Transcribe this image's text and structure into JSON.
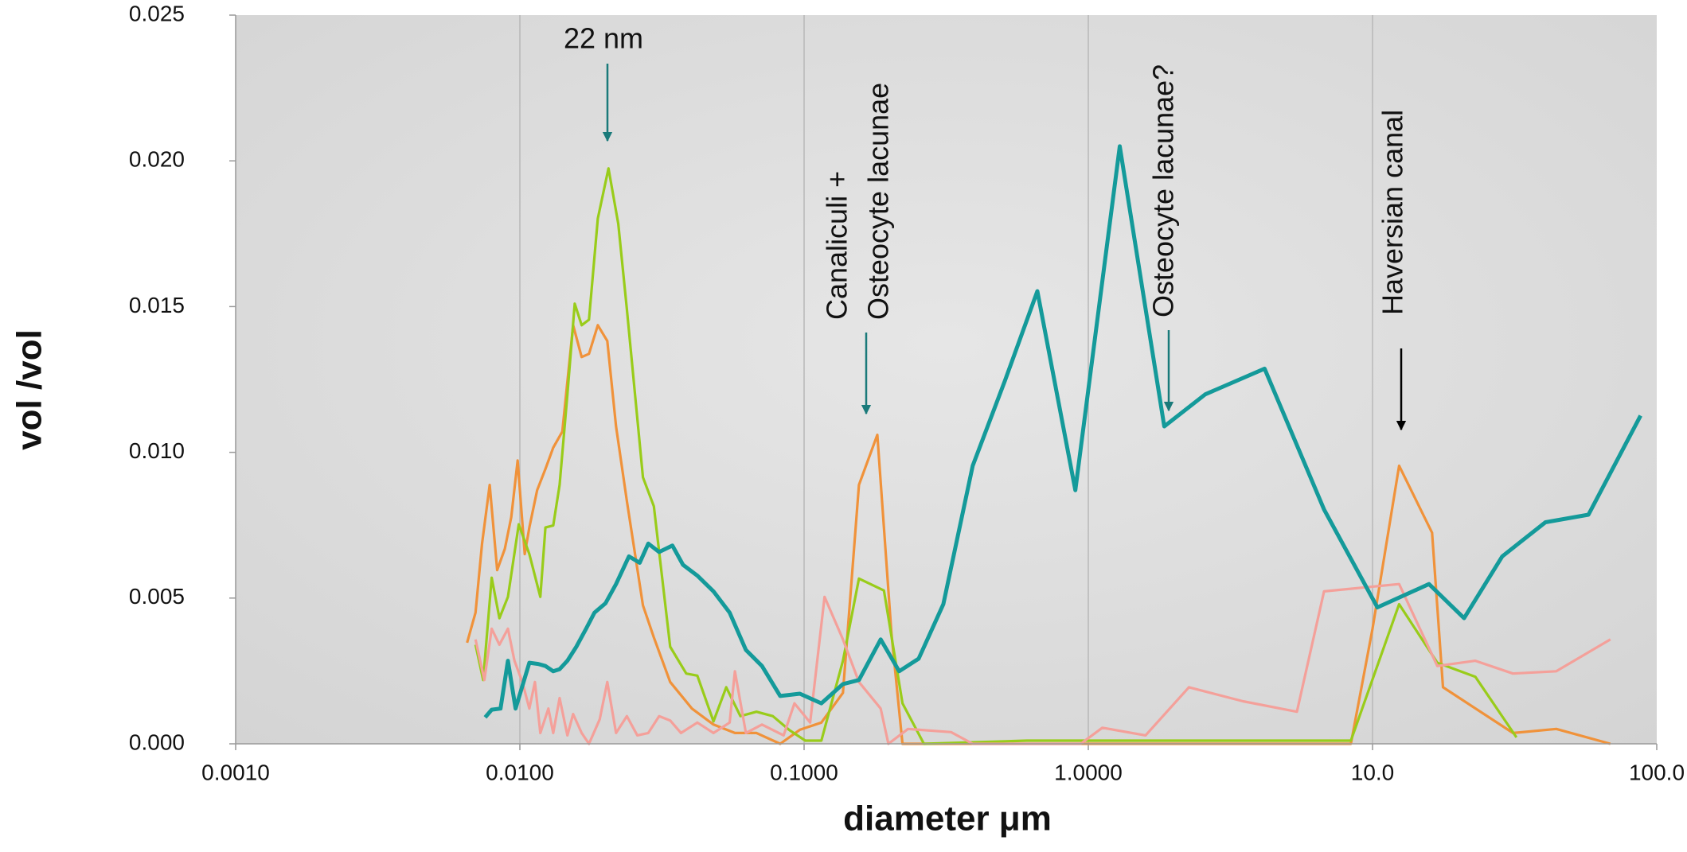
{
  "chart_data": {
    "type": "line",
    "xlabel": "diameter μm",
    "ylabel": "vol /vol",
    "xscale": "log",
    "xlim": [
      0.001,
      100
    ],
    "xticks": [
      {
        "value": 0.001,
        "label": "0.0010"
      },
      {
        "value": 0.01,
        "label": "0.0100"
      },
      {
        "value": 0.1,
        "label": "0.1000"
      },
      {
        "value": 1,
        "label": "1.0000"
      },
      {
        "value": 10,
        "label": "10.0"
      },
      {
        "value": 100,
        "label": "100.0"
      }
    ],
    "ylim": [
      0,
      0.025
    ],
    "yticks": [
      {
        "value": 0,
        "label": "0.000"
      },
      {
        "value": 0.005,
        "label": "0.005"
      },
      {
        "value": 0.01,
        "label": "0.010"
      },
      {
        "value": 0.015,
        "label": "0.015"
      },
      {
        "value": 0.02,
        "label": "0.020"
      },
      {
        "value": 0.025,
        "label": "0.025"
      }
    ],
    "grid": true,
    "annotations": [
      "22 nm",
      "Canaliculi +",
      "Osteocyte lacunae",
      "Osteocyte lacunae?",
      "Haversian canal"
    ],
    "series": [
      {
        "color": "#f0923a",
        "x": [
          0.00652,
          0.00698,
          0.00736,
          0.00783,
          0.00832,
          0.00885,
          0.00933,
          0.00982,
          0.0104,
          0.0108,
          0.0115,
          0.0123,
          0.0131,
          0.0141,
          0.0154,
          0.0165,
          0.0175,
          0.0188,
          0.0203,
          0.0218,
          0.0238,
          0.0271,
          0.0296,
          0.0338,
          0.0403,
          0.048,
          0.0571,
          0.068,
          0.0824,
          0.0966,
          0.115,
          0.137,
          0.156,
          0.181,
          0.203,
          0.222,
          0.392,
          0.94,
          2.26,
          5.42,
          8.39,
          10.0,
          12.4,
          16.2,
          17.7,
          31.2,
          44.3,
          68.7
        ],
        "values": [
          0.00347,
          0.0045,
          0.00687,
          0.00888,
          0.00596,
          0.00669,
          0.00778,
          0.00972,
          0.00651,
          0.00742,
          0.0087,
          0.00943,
          0.01016,
          0.01071,
          0.01436,
          0.01327,
          0.01338,
          0.01436,
          0.01382,
          0.01089,
          0.00833,
          0.00475,
          0.00365,
          0.00212,
          0.00121,
          0.00066,
          0.00037,
          0.00037,
          0,
          0.00048,
          0.00073,
          0.00175,
          0.00888,
          0.0106,
          0.00376,
          0,
          0,
          0,
          0,
          0,
          0,
          0.00395,
          0.00954,
          0.00724,
          0.00194,
          0.00037,
          0.00051,
          0
        ]
      },
      {
        "color": "#99cc1a",
        "x": [
          0.00698,
          0.00743,
          0.00796,
          0.00847,
          0.00908,
          0.00991,
          0.0108,
          0.0118,
          0.0123,
          0.0131,
          0.0138,
          0.0147,
          0.0156,
          0.0165,
          0.0175,
          0.0188,
          0.0205,
          0.0222,
          0.0238,
          0.0271,
          0.0296,
          0.0338,
          0.0385,
          0.0421,
          0.048,
          0.0532,
          0.0597,
          0.068,
          0.0776,
          0.0885,
          0.101,
          0.115,
          0.137,
          0.156,
          0.191,
          0.222,
          0.264,
          0.607,
          2.26,
          8.39,
          12.4,
          16.9,
          23.0,
          32.1
        ],
        "values": [
          0.0034,
          0.00219,
          0.0057,
          0.00431,
          0.00504,
          0.00753,
          0.00651,
          0.00504,
          0.00742,
          0.00749,
          0.00888,
          0.01199,
          0.0151,
          0.01436,
          0.01455,
          0.01802,
          0.01974,
          0.01784,
          0.01491,
          0.00914,
          0.00815,
          0.00333,
          0.00241,
          0.00234,
          0.00077,
          0.00194,
          0.00095,
          0.0011,
          0.00095,
          0.00048,
          0.00011,
          0.00011,
          0.00285,
          0.00567,
          0.00526,
          0.00139,
          0,
          0.00011,
          0.00011,
          0.00011,
          0.00479,
          0.00278,
          0.0023,
          0.00022
        ]
      },
      {
        "color": "#f4a09a",
        "x": [
          0.00698,
          0.0075,
          0.00796,
          0.00847,
          0.00908,
          0.00957,
          0.0102,
          0.0108,
          0.0113,
          0.0118,
          0.0126,
          0.0131,
          0.0138,
          0.0147,
          0.0154,
          0.0165,
          0.0175,
          0.0191,
          0.0203,
          0.0218,
          0.0238,
          0.0259,
          0.0283,
          0.0309,
          0.0338,
          0.0369,
          0.0421,
          0.048,
          0.0547,
          0.0571,
          0.0624,
          0.0711,
          0.0847,
          0.0925,
          0.105,
          0.118,
          0.137,
          0.156,
          0.186,
          0.198,
          0.232,
          0.329,
          0.392,
          0.94,
          1.12,
          1.59,
          2.26,
          3.5,
          5.42,
          6.75,
          12.4,
          16.9,
          23.0,
          31.2,
          44.3,
          68.7
        ],
        "values": [
          0.00358,
          0.00219,
          0.00395,
          0.0034,
          0.00395,
          0.00285,
          0.00212,
          0.00121,
          0.00212,
          0.00037,
          0.00121,
          0.00037,
          0.00157,
          0.00029,
          0.00102,
          0.00037,
          0,
          0.00084,
          0.00212,
          0.00037,
          0.00095,
          0.00029,
          0.00037,
          0.00095,
          0.0008,
          0.00037,
          0.00073,
          0.00037,
          0.00073,
          0.00249,
          0.00037,
          0.00066,
          0.00029,
          0.00139,
          0.00073,
          0.00504,
          0.00358,
          0.00212,
          0.00121,
          0,
          0.00051,
          0.0004,
          0,
          0,
          0.00055,
          0.00029,
          0.00194,
          0.00146,
          0.0011,
          0.00523,
          0.00548,
          0.00267,
          0.00285,
          0.00241,
          0.00249,
          0.00358
        ]
      },
      {
        "color": "#149a9a",
        "x": [
          0.00755,
          0.00796,
          0.00855,
          0.00908,
          0.00966,
          0.0108,
          0.0116,
          0.0123,
          0.0131,
          0.0138,
          0.0147,
          0.0158,
          0.0171,
          0.0183,
          0.02,
          0.0218,
          0.0242,
          0.0264,
          0.0283,
          0.0309,
          0.0344,
          0.0375,
          0.0421,
          0.048,
          0.0547,
          0.0624,
          0.0711,
          0.0824,
          0.0966,
          0.115,
          0.137,
          0.156,
          0.186,
          0.216,
          0.253,
          0.309,
          0.392,
          0.509,
          0.662,
          0.9,
          1.29,
          1.85,
          2.58,
          4.17,
          6.75,
          10.4,
          15.8,
          21.0,
          28.6,
          40.6,
          57.5,
          87.7
        ],
        "values": [
          0.00091,
          0.00117,
          0.00121,
          0.00285,
          0.00121,
          0.00278,
          0.00274,
          0.00267,
          0.00249,
          0.00256,
          0.00285,
          0.00333,
          0.00395,
          0.0045,
          0.00482,
          0.00548,
          0.00643,
          0.00621,
          0.00687,
          0.00658,
          0.0068,
          0.00614,
          0.00577,
          0.00523,
          0.0045,
          0.00322,
          0.00267,
          0.00164,
          0.00172,
          0.00139,
          0.00205,
          0.00219,
          0.00358,
          0.00249,
          0.00292,
          0.00479,
          0.00954,
          0.01246,
          0.01553,
          0.0087,
          0.0205,
          0.01089,
          0.01199,
          0.01287,
          0.00804,
          0.00468,
          0.00548,
          0.00431,
          0.00643,
          0.0076,
          0.00786,
          0.01126
        ]
      }
    ]
  }
}
